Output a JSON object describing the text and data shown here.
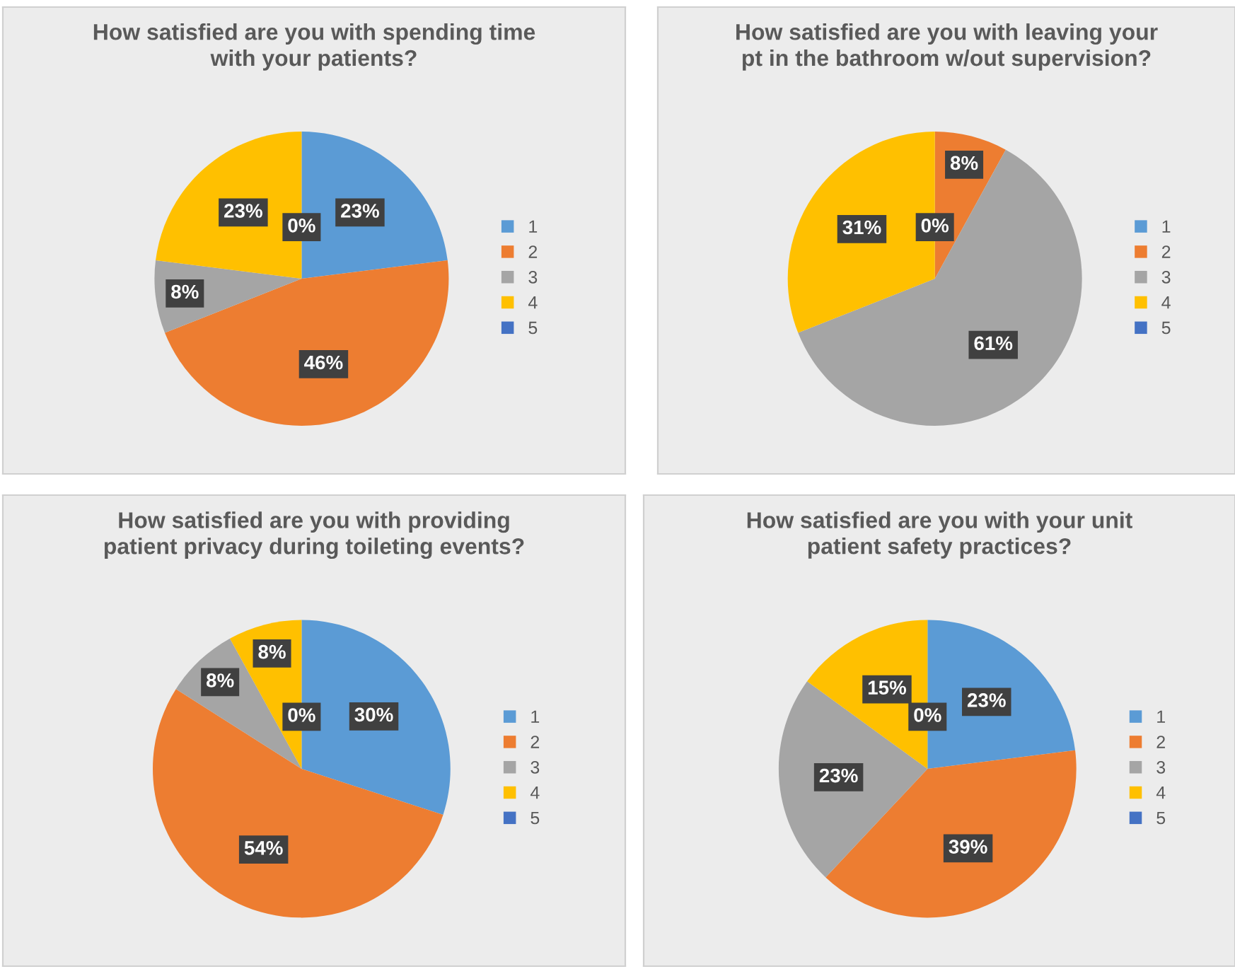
{
  "chart_data": [
    {
      "type": "pie",
      "title": "How satisfied are you with spending time\nwith your patients?",
      "categories": [
        "1",
        "2",
        "3",
        "4",
        "5"
      ],
      "values": [
        23,
        46,
        8,
        23,
        0
      ],
      "value_labels": [
        "23%",
        "46%",
        "8%",
        "23%",
        "0%"
      ],
      "colors": [
        "#5b9bd5",
        "#ed7d31",
        "#a5a5a5",
        "#ffc000",
        "#4472c4"
      ],
      "legend": "right"
    },
    {
      "type": "pie",
      "title": "How satisfied are you with leaving your\npt in the bathroom w/out supervision?",
      "categories": [
        "1",
        "2",
        "3",
        "4",
        "5"
      ],
      "values": [
        0,
        8,
        61,
        31,
        0
      ],
      "value_labels": [
        null,
        "8%",
        "61%",
        "31%",
        "0%"
      ],
      "colors": [
        "#5b9bd5",
        "#ed7d31",
        "#a5a5a5",
        "#ffc000",
        "#4472c4"
      ],
      "legend": "right"
    },
    {
      "type": "pie",
      "title": "How satisfied are you with providing\npatient privacy during toileting events?",
      "categories": [
        "1",
        "2",
        "3",
        "4",
        "5"
      ],
      "values": [
        30,
        54,
        8,
        8,
        0
      ],
      "value_labels": [
        "30%",
        "54%",
        "8%",
        "8%",
        "0%"
      ],
      "colors": [
        "#5b9bd5",
        "#ed7d31",
        "#a5a5a5",
        "#ffc000",
        "#4472c4"
      ],
      "legend": "right"
    },
    {
      "type": "pie",
      "title": "How satisfied are you with your unit\npatient safety practices?",
      "categories": [
        "1",
        "2",
        "3",
        "4",
        "5"
      ],
      "values": [
        23,
        39,
        23,
        15,
        0
      ],
      "value_labels": [
        "23%",
        "39%",
        "23%",
        "15%",
        "0%"
      ],
      "colors": [
        "#5b9bd5",
        "#ed7d31",
        "#a5a5a5",
        "#ffc000",
        "#4472c4"
      ],
      "legend": "right"
    }
  ]
}
